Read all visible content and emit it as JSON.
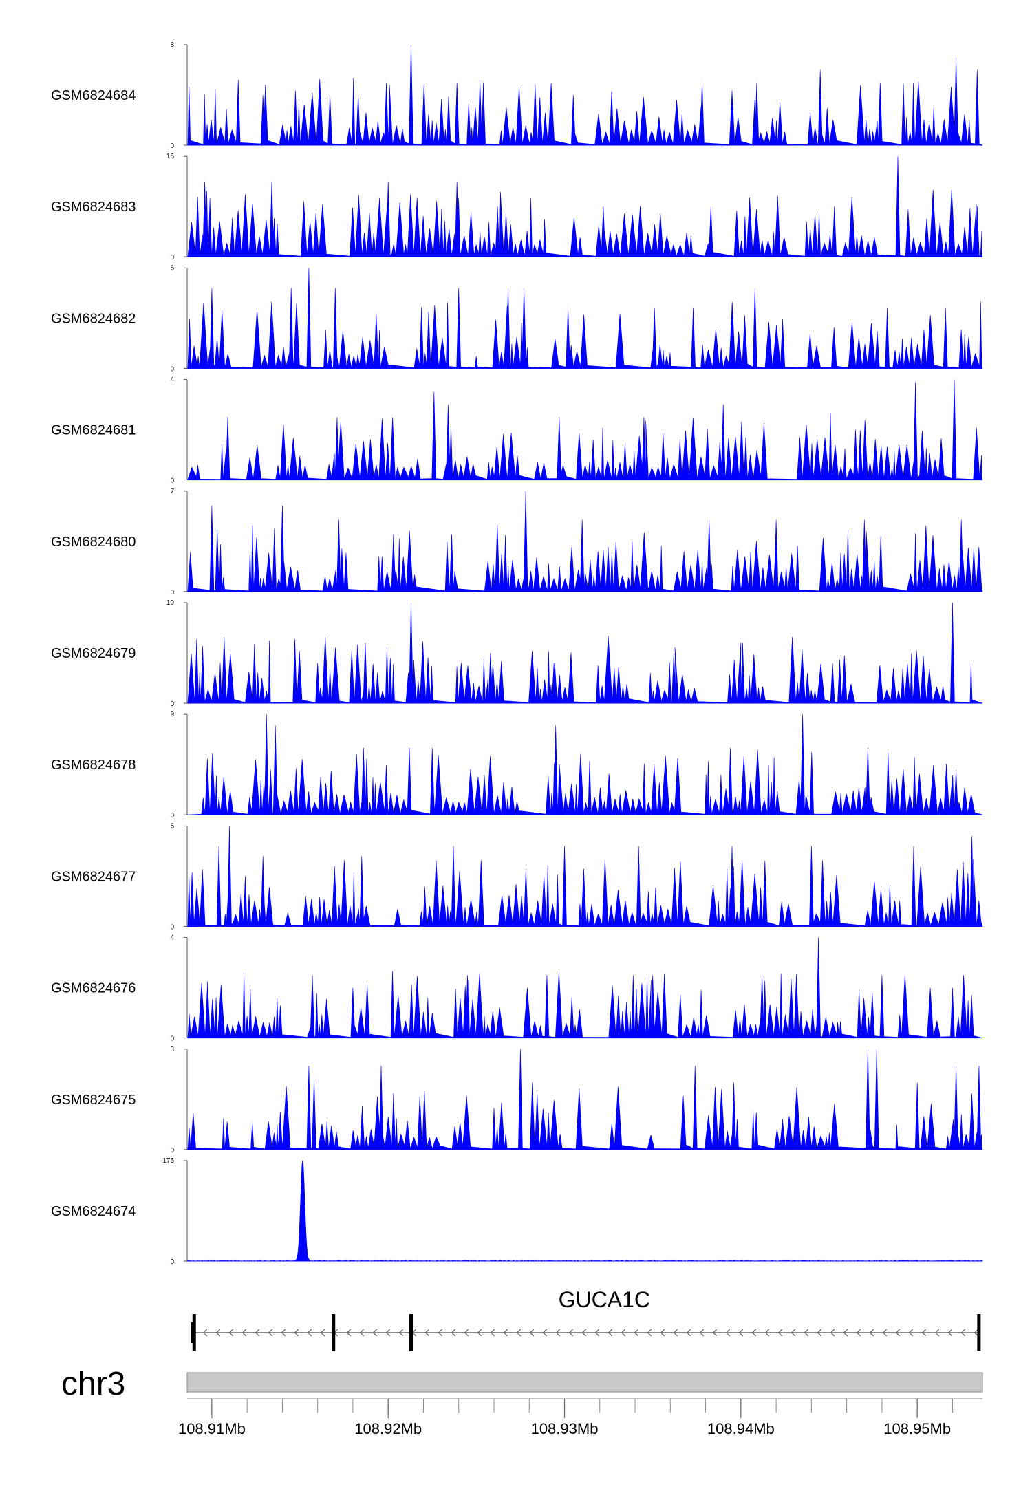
{
  "chart_data": {
    "type": "area",
    "title": "",
    "xlabel": "",
    "ylabel": "",
    "chromosome": "chr3",
    "xlim_mb": [
      108.9086,
      108.9537
    ],
    "x_ticks_mb": [
      108.91,
      108.92,
      108.93,
      108.94,
      108.95
    ],
    "x_tick_labels": [
      "108.91Mb",
      "108.92Mb",
      "108.93Mb",
      "108.94Mb",
      "108.95Mb"
    ],
    "series_color": "#0000ff",
    "tracks": [
      {
        "name": "GSM6824684",
        "ylim": [
          0,
          8
        ],
        "ymax_label": "8",
        "ymin_label": "0",
        "peaks": [
          [
            108.9129,
            4
          ],
          [
            108.9167,
            4
          ],
          [
            108.9183,
            4
          ],
          [
            108.9199,
            5
          ],
          [
            108.9213,
            8
          ],
          [
            108.9239,
            5
          ],
          [
            108.9254,
            5
          ],
          [
            108.9305,
            4
          ],
          [
            108.9378,
            5
          ],
          [
            108.9409,
            5
          ],
          [
            108.9445,
            6
          ],
          [
            108.9479,
            5
          ],
          [
            108.9522,
            7
          ],
          [
            108.9534,
            6
          ]
        ]
      },
      {
        "name": "GSM6824683",
        "ylim": [
          0,
          16
        ],
        "ymax_label": "16",
        "ymin_label": "0",
        "peaks": [
          [
            108.9096,
            12
          ],
          [
            108.9134,
            12
          ],
          [
            108.92,
            12
          ],
          [
            108.9239,
            12
          ],
          [
            108.9262,
            8
          ],
          [
            108.9322,
            8
          ],
          [
            108.9383,
            8
          ],
          [
            108.9453,
            8
          ],
          [
            108.9489,
            16
          ],
          [
            108.9534,
            8
          ]
        ]
      },
      {
        "name": "GSM6824682",
        "ylim": [
          0,
          5
        ],
        "ymax_label": "5",
        "ymin_label": "0",
        "peaks": [
          [
            108.91,
            4
          ],
          [
            108.9145,
            4
          ],
          [
            108.9155,
            5
          ],
          [
            108.917,
            4
          ],
          [
            108.924,
            4
          ],
          [
            108.9268,
            4
          ],
          [
            108.9277,
            4
          ],
          [
            108.9302,
            3
          ],
          [
            108.9351,
            3
          ],
          [
            108.9373,
            3
          ],
          [
            108.9408,
            4
          ],
          [
            108.9483,
            3
          ],
          [
            108.9516,
            3
          ]
        ]
      },
      {
        "name": "GSM6824681",
        "ylim": [
          0,
          4
        ],
        "ymax_label": "4",
        "ymin_label": "0",
        "peaks": [
          [
            108.9109,
            2.5
          ],
          [
            108.9171,
            2.5
          ],
          [
            108.9226,
            3.5
          ],
          [
            108.9234,
            3.0
          ],
          [
            108.9297,
            2.5
          ],
          [
            108.9345,
            2.5
          ],
          [
            108.939,
            3.0
          ],
          [
            108.9465,
            2.0
          ],
          [
            108.9499,
            3.9
          ],
          [
            108.9521,
            4.0
          ]
        ]
      },
      {
        "name": "GSM6824680",
        "ylim": [
          0,
          7
        ],
        "ymax_label": "7",
        "ymin_label": "0",
        "peaks": [
          [
            108.91,
            6
          ],
          [
            108.914,
            6
          ],
          [
            108.9172,
            5
          ],
          [
            108.9203,
            4
          ],
          [
            108.9236,
            4
          ],
          [
            108.9278,
            7
          ],
          [
            108.931,
            5
          ],
          [
            108.9382,
            5
          ],
          [
            108.942,
            5
          ],
          [
            108.947,
            5
          ],
          [
            108.9525,
            5
          ]
        ]
      },
      {
        "name": "GSM6824679",
        "ylim": [
          0,
          10
        ],
        "ymax_label": "10",
        "ymin_label": "0",
        "peaks": [
          [
            108.916,
            4
          ],
          [
            108.9187,
            6
          ],
          [
            108.9213,
            10
          ],
          [
            108.9258,
            5
          ],
          [
            108.9294,
            4
          ],
          [
            108.9362,
            5
          ],
          [
            108.9401,
            6
          ],
          [
            108.9452,
            4
          ],
          [
            108.952,
            10
          ]
        ]
      },
      {
        "name": "GSM6824678",
        "ylim": [
          0,
          9
        ],
        "ymax_label": "9",
        "ymin_label": "0",
        "peaks": [
          [
            108.9131,
            9
          ],
          [
            108.9136,
            8
          ],
          [
            108.9186,
            6
          ],
          [
            108.9212,
            6
          ],
          [
            108.9225,
            6
          ],
          [
            108.9295,
            8
          ],
          [
            108.9394,
            6
          ],
          [
            108.9435,
            9
          ],
          [
            108.9472,
            6
          ],
          [
            108.9522,
            4
          ]
        ]
      },
      {
        "name": "GSM6824677",
        "ylim": [
          0,
          5
        ],
        "ymax_label": "5",
        "ymin_label": "0",
        "peaks": [
          [
            108.9104,
            4
          ],
          [
            108.911,
            5
          ],
          [
            108.9129,
            3.5
          ],
          [
            108.9185,
            3.5
          ],
          [
            108.9237,
            4
          ],
          [
            108.93,
            4
          ],
          [
            108.9342,
            4
          ],
          [
            108.9395,
            4
          ],
          [
            108.944,
            4
          ],
          [
            108.9498,
            4
          ],
          [
            108.9531,
            4.5
          ]
        ]
      },
      {
        "name": "GSM6824676",
        "ylim": [
          0,
          4
        ],
        "ymax_label": "4",
        "ymin_label": "0",
        "peaks": [
          [
            108.9157,
            2.5
          ],
          [
            108.918,
            2
          ],
          [
            108.9245,
            2.5
          ],
          [
            108.929,
            2.5
          ],
          [
            108.935,
            2.5
          ],
          [
            108.9412,
            2.5
          ],
          [
            108.9444,
            4
          ],
          [
            108.948,
            2.5
          ],
          [
            108.952,
            2
          ]
        ]
      },
      {
        "name": "GSM6824675",
        "ylim": [
          0,
          3
        ],
        "ymax_label": "3",
        "ymin_label": "0",
        "peaks": [
          [
            108.9155,
            2.5
          ],
          [
            108.9158,
            2.1
          ],
          [
            108.9196,
            2.5
          ],
          [
            108.9275,
            3
          ],
          [
            108.9374,
            2.5
          ],
          [
            108.9396,
            2
          ],
          [
            108.9472,
            3
          ],
          [
            108.9477,
            3
          ],
          [
            108.95,
            2
          ],
          [
            108.9522,
            2.5
          ],
          [
            108.9535,
            2.5
          ]
        ]
      },
      {
        "name": "GSM6824674",
        "ylim": [
          0,
          175
        ],
        "ymax_label": "175",
        "ymin_label": "0",
        "peaks": [
          [
            108.91515,
            175
          ]
        ]
      }
    ],
    "gene": {
      "name": "GUCA1C",
      "strand": "-",
      "start_mb": 108.9089,
      "end_mb": 108.9535,
      "exons_mb": [
        108.909,
        108.9169,
        108.9213,
        108.9535
      ]
    }
  }
}
